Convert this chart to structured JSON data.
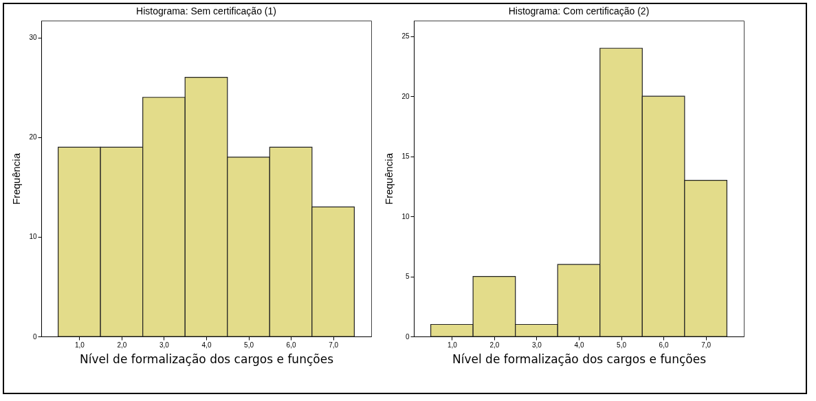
{
  "chart_data": [
    {
      "type": "histogram",
      "title": "Histograma: Sem certificação (1)",
      "xlabel": "Nível de formalização dos cargos e funções",
      "ylabel": "Frequência",
      "bins": [
        0.5,
        1.5,
        2.5,
        3.5,
        4.5,
        5.5,
        6.5,
        7.5
      ],
      "values": [
        19,
        19,
        24,
        26,
        18,
        19,
        13
      ],
      "color": "#e3dc8a",
      "xlim": [
        0.1,
        7.9
      ],
      "ylim": [
        0,
        31.7
      ],
      "xticks": [
        {
          "value": 1,
          "label": "1,0"
        },
        {
          "value": 2,
          "label": "2,0"
        },
        {
          "value": 3,
          "label": "3,0"
        },
        {
          "value": 4,
          "label": "4,0"
        },
        {
          "value": 5,
          "label": "5,0"
        },
        {
          "value": 6,
          "label": "6,0"
        },
        {
          "value": 7,
          "label": "7,0"
        }
      ],
      "yticks": [
        0,
        10,
        20,
        30
      ],
      "grid": false
    },
    {
      "type": "histogram",
      "title": "Histograma: Com certificação (2)",
      "xlabel": "Nível de formalização dos cargos e funções",
      "ylabel": "Frequência",
      "bins": [
        0.5,
        1.5,
        2.5,
        3.5,
        4.5,
        5.5,
        6.5,
        7.5
      ],
      "values": [
        1,
        5,
        1,
        6,
        24,
        20,
        13
      ],
      "color": "#e3dc8a",
      "xlim": [
        0.1,
        7.9
      ],
      "ylim": [
        0,
        26.3
      ],
      "xticks": [
        {
          "value": 1,
          "label": "1,0"
        },
        {
          "value": 2,
          "label": "2,0"
        },
        {
          "value": 3,
          "label": "3,0"
        },
        {
          "value": 4,
          "label": "4,0"
        },
        {
          "value": 5,
          "label": "5,0"
        },
        {
          "value": 6,
          "label": "6,0"
        },
        {
          "value": 7,
          "label": "7,0"
        }
      ],
      "yticks": [
        0,
        5,
        10,
        15,
        20,
        25
      ],
      "grid": false
    }
  ]
}
